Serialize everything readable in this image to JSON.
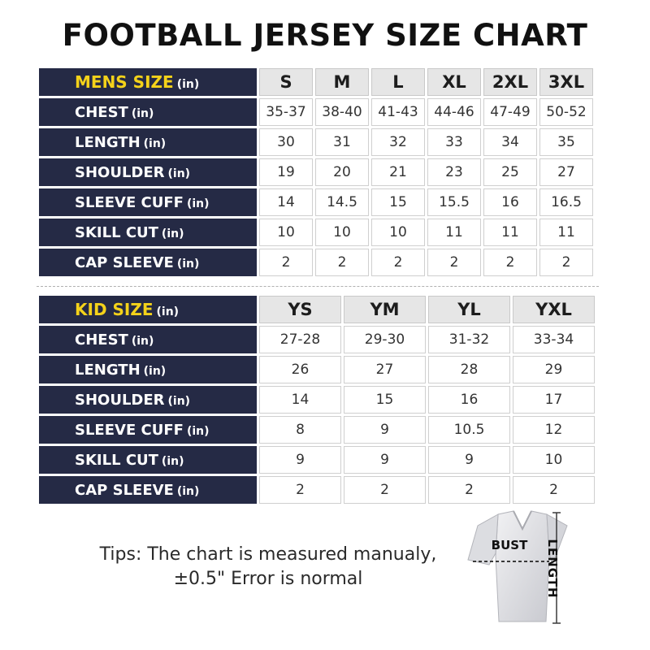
{
  "title": "FOOTBALL JERSEY SIZE CHART",
  "mens": {
    "heading": "MENS SIZE",
    "unit": "(in)",
    "sizes": [
      "S",
      "M",
      "L",
      "XL",
      "2XL",
      "3XL"
    ],
    "rows": [
      {
        "label": "CHEST",
        "unit": "(in)",
        "values": [
          "35-37",
          "38-40",
          "41-43",
          "44-46",
          "47-49",
          "50-52"
        ]
      },
      {
        "label": "LENGTH",
        "unit": "(in)",
        "values": [
          "30",
          "31",
          "32",
          "33",
          "34",
          "35"
        ]
      },
      {
        "label": "SHOULDER",
        "unit": "(in)",
        "values": [
          "19",
          "20",
          "21",
          "23",
          "25",
          "27"
        ]
      },
      {
        "label": "SLEEVE CUFF",
        "unit": "(in)",
        "values": [
          "14",
          "14.5",
          "15",
          "15.5",
          "16",
          "16.5"
        ]
      },
      {
        "label": "SKILL CUT",
        "unit": "(in)",
        "values": [
          "10",
          "10",
          "10",
          "11",
          "11",
          "11"
        ]
      },
      {
        "label": "CAP SLEEVE",
        "unit": "(in)",
        "values": [
          "2",
          "2",
          "2",
          "2",
          "2",
          "2"
        ]
      }
    ]
  },
  "kids": {
    "heading": "KID SIZE",
    "unit": "(in)",
    "sizes": [
      "YS",
      "YM",
      "YL",
      "YXL"
    ],
    "rows": [
      {
        "label": "CHEST",
        "unit": "(in)",
        "values": [
          "27-28",
          "29-30",
          "31-32",
          "33-34"
        ]
      },
      {
        "label": "LENGTH",
        "unit": "(in)",
        "values": [
          "26",
          "27",
          "28",
          "29"
        ]
      },
      {
        "label": "SHOULDER",
        "unit": "(in)",
        "values": [
          "14",
          "15",
          "16",
          "17"
        ]
      },
      {
        "label": "SLEEVE CUFF",
        "unit": "(in)",
        "values": [
          "8",
          "9",
          "10.5",
          "12"
        ]
      },
      {
        "label": "SKILL CUT",
        "unit": "(in)",
        "values": [
          "9",
          "9",
          "9",
          "10"
        ]
      },
      {
        "label": "CAP SLEEVE",
        "unit": "(in)",
        "values": [
          "2",
          "2",
          "2",
          "2"
        ]
      }
    ]
  },
  "tips": {
    "line1": "Tips: The chart is measured manualy,",
    "line2": "±0.5\" Error is normal"
  },
  "figure": {
    "icon": "jersey-diagram-icon",
    "bust_label": "BUST",
    "length_label": "LENGTH"
  },
  "colors": {
    "label_bg": "#252a45",
    "heading_accent": "#f4d21a",
    "header_cell_bg": "#e6e6e6"
  }
}
